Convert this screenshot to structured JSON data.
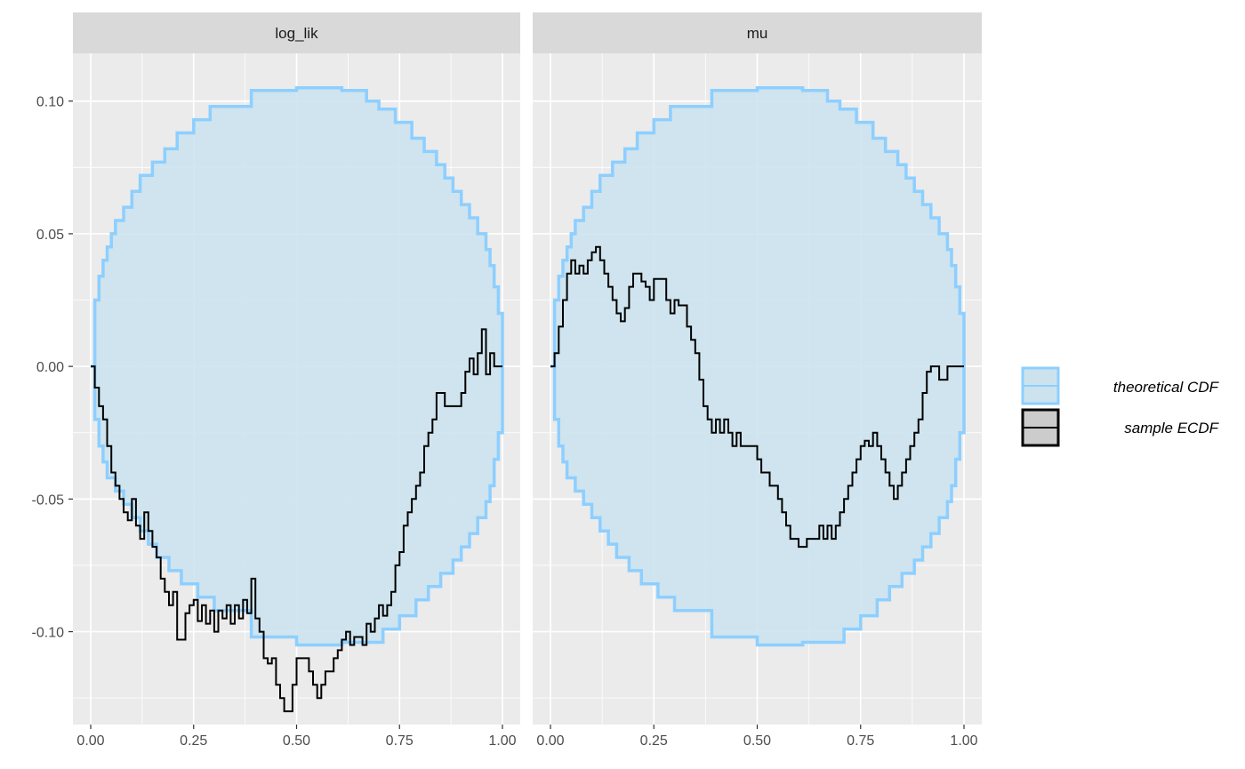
{
  "chart_data": {
    "type": "line",
    "facets": [
      "log_lik",
      "mu"
    ],
    "xlim": [
      0,
      1
    ],
    "ylim": [
      -0.135,
      0.118
    ],
    "x_ticks": [
      "0.00",
      "0.25",
      "0.50",
      "0.75",
      "1.00"
    ],
    "x_tick_values": [
      0,
      0.25,
      0.5,
      0.75,
      1
    ],
    "y_ticks": [
      "0.10",
      "0.05",
      "0.00",
      "-0.05",
      "-0.10"
    ],
    "y_tick_values": [
      0.1,
      0.05,
      0,
      -0.05,
      -0.1
    ],
    "grid": true,
    "legend": {
      "position": "right",
      "entries": [
        "theoretical CDF",
        "sample ECDF"
      ]
    },
    "colors": {
      "band_fill": "#cce3ee",
      "band_stroke": "#8dcfff",
      "ecdf": "#000000",
      "panel_bg": "#ebebeb",
      "strip_bg": "#d9d9d9",
      "grid": "#ffffff"
    },
    "band": {
      "name": "theoretical CDF",
      "upper": [
        [
          0,
          0
        ],
        [
          0.01,
          0.025
        ],
        [
          0.02,
          0.034
        ],
        [
          0.03,
          0.04
        ],
        [
          0.04,
          0.045
        ],
        [
          0.05,
          0.05
        ],
        [
          0.06,
          0.055
        ],
        [
          0.08,
          0.06
        ],
        [
          0.1,
          0.066
        ],
        [
          0.12,
          0.072
        ],
        [
          0.15,
          0.077
        ],
        [
          0.18,
          0.082
        ],
        [
          0.21,
          0.088
        ],
        [
          0.25,
          0.093
        ],
        [
          0.29,
          0.098
        ],
        [
          0.39,
          0.104
        ],
        [
          0.5,
          0.105
        ],
        [
          0.61,
          0.104
        ],
        [
          0.67,
          0.1
        ],
        [
          0.7,
          0.097
        ],
        [
          0.74,
          0.092
        ],
        [
          0.78,
          0.086
        ],
        [
          0.81,
          0.081
        ],
        [
          0.84,
          0.076
        ],
        [
          0.86,
          0.071
        ],
        [
          0.88,
          0.066
        ],
        [
          0.9,
          0.061
        ],
        [
          0.92,
          0.056
        ],
        [
          0.94,
          0.05
        ],
        [
          0.96,
          0.044
        ],
        [
          0.97,
          0.038
        ],
        [
          0.98,
          0.03
        ],
        [
          0.99,
          0.02
        ],
        [
          1,
          0
        ]
      ],
      "lower": [
        [
          0,
          0
        ],
        [
          0.01,
          -0.02
        ],
        [
          0.02,
          -0.03
        ],
        [
          0.03,
          -0.036
        ],
        [
          0.04,
          -0.042
        ],
        [
          0.06,
          -0.047
        ],
        [
          0.08,
          -0.052
        ],
        [
          0.1,
          -0.057
        ],
        [
          0.12,
          -0.062
        ],
        [
          0.14,
          -0.067
        ],
        [
          0.16,
          -0.072
        ],
        [
          0.19,
          -0.077
        ],
        [
          0.22,
          -0.082
        ],
        [
          0.26,
          -0.087
        ],
        [
          0.3,
          -0.092
        ],
        [
          0.39,
          -0.102
        ],
        [
          0.5,
          -0.105
        ],
        [
          0.61,
          -0.104
        ],
        [
          0.71,
          -0.099
        ],
        [
          0.75,
          -0.094
        ],
        [
          0.79,
          -0.088
        ],
        [
          0.82,
          -0.083
        ],
        [
          0.85,
          -0.078
        ],
        [
          0.88,
          -0.073
        ],
        [
          0.9,
          -0.068
        ],
        [
          0.92,
          -0.063
        ],
        [
          0.94,
          -0.057
        ],
        [
          0.96,
          -0.051
        ],
        [
          0.97,
          -0.045
        ],
        [
          0.98,
          -0.035
        ],
        [
          0.99,
          -0.025
        ],
        [
          1,
          0
        ]
      ]
    },
    "series": [
      {
        "name": "sample ECDF",
        "facet": "log_lik",
        "points": [
          [
            0,
            0
          ],
          [
            0.01,
            -0.008
          ],
          [
            0.02,
            -0.015
          ],
          [
            0.03,
            -0.02
          ],
          [
            0.04,
            -0.03
          ],
          [
            0.05,
            -0.04
          ],
          [
            0.06,
            -0.045
          ],
          [
            0.07,
            -0.05
          ],
          [
            0.08,
            -0.055
          ],
          [
            0.09,
            -0.058
          ],
          [
            0.1,
            -0.05
          ],
          [
            0.11,
            -0.06
          ],
          [
            0.12,
            -0.065
          ],
          [
            0.13,
            -0.055
          ],
          [
            0.14,
            -0.062
          ],
          [
            0.15,
            -0.068
          ],
          [
            0.16,
            -0.072
          ],
          [
            0.17,
            -0.08
          ],
          [
            0.18,
            -0.085
          ],
          [
            0.19,
            -0.09
          ],
          [
            0.2,
            -0.085
          ],
          [
            0.21,
            -0.103
          ],
          [
            0.23,
            -0.093
          ],
          [
            0.24,
            -0.09
          ],
          [
            0.25,
            -0.088
          ],
          [
            0.26,
            -0.096
          ],
          [
            0.27,
            -0.09
          ],
          [
            0.28,
            -0.097
          ],
          [
            0.29,
            -0.092
          ],
          [
            0.3,
            -0.1
          ],
          [
            0.31,
            -0.092
          ],
          [
            0.32,
            -0.095
          ],
          [
            0.33,
            -0.09
          ],
          [
            0.34,
            -0.097
          ],
          [
            0.35,
            -0.09
          ],
          [
            0.36,
            -0.095
          ],
          [
            0.37,
            -0.088
          ],
          [
            0.38,
            -0.093
          ],
          [
            0.39,
            -0.08
          ],
          [
            0.4,
            -0.095
          ],
          [
            0.41,
            -0.1
          ],
          [
            0.42,
            -0.11
          ],
          [
            0.43,
            -0.112
          ],
          [
            0.44,
            -0.11
          ],
          [
            0.45,
            -0.12
          ],
          [
            0.46,
            -0.125
          ],
          [
            0.47,
            -0.13
          ],
          [
            0.49,
            -0.12
          ],
          [
            0.5,
            -0.11
          ],
          [
            0.53,
            -0.115
          ],
          [
            0.54,
            -0.12
          ],
          [
            0.55,
            -0.125
          ],
          [
            0.56,
            -0.12
          ],
          [
            0.57,
            -0.115
          ],
          [
            0.59,
            -0.11
          ],
          [
            0.6,
            -0.107
          ],
          [
            0.61,
            -0.103
          ],
          [
            0.62,
            -0.1
          ],
          [
            0.63,
            -0.105
          ],
          [
            0.64,
            -0.102
          ],
          [
            0.66,
            -0.105
          ],
          [
            0.67,
            -0.097
          ],
          [
            0.68,
            -0.1
          ],
          [
            0.69,
            -0.095
          ],
          [
            0.7,
            -0.09
          ],
          [
            0.71,
            -0.094
          ],
          [
            0.72,
            -0.09
          ],
          [
            0.73,
            -0.085
          ],
          [
            0.74,
            -0.075
          ],
          [
            0.75,
            -0.07
          ],
          [
            0.76,
            -0.06
          ],
          [
            0.77,
            -0.055
          ],
          [
            0.78,
            -0.05
          ],
          [
            0.79,
            -0.045
          ],
          [
            0.8,
            -0.04
          ],
          [
            0.81,
            -0.03
          ],
          [
            0.82,
            -0.025
          ],
          [
            0.83,
            -0.02
          ],
          [
            0.84,
            -0.01
          ],
          [
            0.86,
            -0.015
          ],
          [
            0.9,
            -0.01
          ],
          [
            0.91,
            -0.002
          ],
          [
            0.92,
            0.003
          ],
          [
            0.93,
            -0.003
          ],
          [
            0.94,
            0.005
          ],
          [
            0.95,
            0.014
          ],
          [
            0.96,
            -0.003
          ],
          [
            0.97,
            0.005
          ],
          [
            0.98,
            0
          ],
          [
            0.99,
            0
          ],
          [
            1,
            0
          ]
        ]
      },
      {
        "name": "sample ECDF",
        "facet": "mu",
        "points": [
          [
            0,
            0
          ],
          [
            0.01,
            0.005
          ],
          [
            0.02,
            0.015
          ],
          [
            0.03,
            0.025
          ],
          [
            0.04,
            0.035
          ],
          [
            0.05,
            0.04
          ],
          [
            0.06,
            0.035
          ],
          [
            0.07,
            0.038
          ],
          [
            0.08,
            0.035
          ],
          [
            0.09,
            0.04
          ],
          [
            0.1,
            0.043
          ],
          [
            0.11,
            0.045
          ],
          [
            0.12,
            0.04
          ],
          [
            0.13,
            0.035
          ],
          [
            0.14,
            0.03
          ],
          [
            0.15,
            0.025
          ],
          [
            0.16,
            0.02
          ],
          [
            0.17,
            0.017
          ],
          [
            0.18,
            0.022
          ],
          [
            0.19,
            0.03
          ],
          [
            0.2,
            0.035
          ],
          [
            0.22,
            0.032
          ],
          [
            0.23,
            0.03
          ],
          [
            0.24,
            0.025
          ],
          [
            0.25,
            0.033
          ],
          [
            0.28,
            0.025
          ],
          [
            0.29,
            0.02
          ],
          [
            0.3,
            0.025
          ],
          [
            0.31,
            0.023
          ],
          [
            0.33,
            0.015
          ],
          [
            0.34,
            0.01
          ],
          [
            0.35,
            0.005
          ],
          [
            0.36,
            -0.005
          ],
          [
            0.37,
            -0.015
          ],
          [
            0.38,
            -0.02
          ],
          [
            0.39,
            -0.025
          ],
          [
            0.4,
            -0.02
          ],
          [
            0.41,
            -0.025
          ],
          [
            0.42,
            -0.02
          ],
          [
            0.43,
            -0.025
          ],
          [
            0.44,
            -0.03
          ],
          [
            0.45,
            -0.025
          ],
          [
            0.46,
            -0.03
          ],
          [
            0.5,
            -0.035
          ],
          [
            0.51,
            -0.04
          ],
          [
            0.53,
            -0.045
          ],
          [
            0.55,
            -0.05
          ],
          [
            0.56,
            -0.055
          ],
          [
            0.57,
            -0.06
          ],
          [
            0.58,
            -0.065
          ],
          [
            0.6,
            -0.068
          ],
          [
            0.62,
            -0.065
          ],
          [
            0.65,
            -0.06
          ],
          [
            0.66,
            -0.065
          ],
          [
            0.67,
            -0.06
          ],
          [
            0.68,
            -0.065
          ],
          [
            0.69,
            -0.06
          ],
          [
            0.7,
            -0.055
          ],
          [
            0.71,
            -0.05
          ],
          [
            0.72,
            -0.045
          ],
          [
            0.73,
            -0.04
          ],
          [
            0.74,
            -0.035
          ],
          [
            0.75,
            -0.03
          ],
          [
            0.76,
            -0.028
          ],
          [
            0.77,
            -0.03
          ],
          [
            0.78,
            -0.025
          ],
          [
            0.79,
            -0.03
          ],
          [
            0.8,
            -0.035
          ],
          [
            0.81,
            -0.04
          ],
          [
            0.82,
            -0.045
          ],
          [
            0.83,
            -0.05
          ],
          [
            0.84,
            -0.045
          ],
          [
            0.85,
            -0.04
          ],
          [
            0.86,
            -0.035
          ],
          [
            0.87,
            -0.03
          ],
          [
            0.88,
            -0.025
          ],
          [
            0.89,
            -0.02
          ],
          [
            0.9,
            -0.01
          ],
          [
            0.91,
            -0.002
          ],
          [
            0.92,
            0
          ],
          [
            0.93,
            0
          ],
          [
            0.94,
            -0.005
          ],
          [
            0.96,
            0
          ],
          [
            0.98,
            0
          ],
          [
            1,
            0
          ]
        ]
      }
    ]
  }
}
